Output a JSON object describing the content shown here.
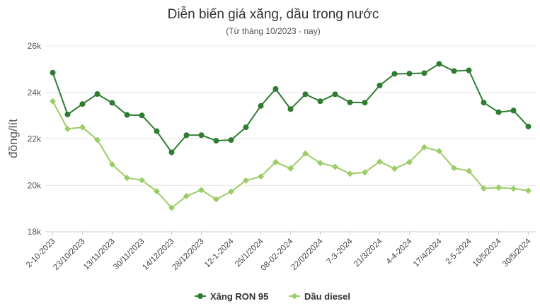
{
  "chart_data": {
    "type": "line",
    "title": "Diễn biến giá xăng, dầu trong nước",
    "subtitle": "(Từ tháng 10/2023 - nay)",
    "xlabel": "",
    "ylabel": "đồng/lít",
    "ylim": [
      18000,
      26000
    ],
    "yticks": [
      18000,
      20000,
      22000,
      24000,
      26000
    ],
    "ytick_labels": [
      "18k",
      "20k",
      "22k",
      "24k",
      "26k"
    ],
    "grid": "horizontal",
    "legend_position": "bottom",
    "x_labels": [
      "2-10-2023",
      "23/10/2023",
      "13/11/2023",
      "30/11/2023",
      "14/12/2023",
      "28/12/2023",
      "12-1-2024",
      "25/1/2024",
      "08-02-2024",
      "22/02/2024",
      "7-3-2024",
      "21/3/2024",
      "4-4-2024",
      "17/4/2024",
      "2-5-2024",
      "16/5/2024",
      "30/5/2024"
    ],
    "x_label_every": 2,
    "num_points": 33,
    "series": [
      {
        "name": "Xăng RON 95",
        "color": "#2e7d32",
        "marker": "circle",
        "values": [
          24850,
          23050,
          23500,
          23930,
          23550,
          23030,
          23010,
          22330,
          21420,
          22160,
          22160,
          21920,
          21950,
          22500,
          23420,
          24150,
          23280,
          23920,
          23620,
          23920,
          23570,
          23560,
          24300,
          24800,
          24810,
          24830,
          25230,
          24920,
          24950,
          23560,
          23150,
          23220,
          22530
        ]
      },
      {
        "name": "Dầu diesel",
        "color": "#9ccc65",
        "marker": "diamond",
        "values": [
          23620,
          22430,
          22500,
          21960,
          20900,
          20320,
          20220,
          19740,
          19030,
          19540,
          19800,
          19400,
          19730,
          20210,
          20380,
          21000,
          20730,
          21370,
          20960,
          20800,
          20500,
          20560,
          21020,
          20720,
          21000,
          21640,
          21470,
          20740,
          20620,
          19870,
          19900,
          19860,
          19770
        ]
      }
    ]
  }
}
